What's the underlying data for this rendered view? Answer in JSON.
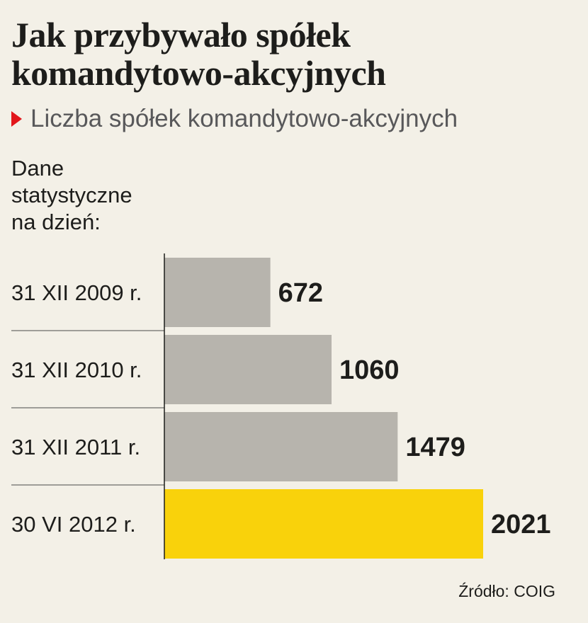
{
  "title": "Jak przybywało spółek komandytowo-akcyjnych",
  "subtitle": "Liczba spółek komandytowo-akcyjnych",
  "note": "Dane statystyczne na dzień:",
  "source": "Źródło: COIG",
  "colors": {
    "bar_default": "#b7b4ad",
    "bar_highlight": "#f9d20b",
    "marker": "#e2161b",
    "background": "#f3f0e7"
  },
  "icons": {
    "subtitle_marker": "triangle-right-icon"
  },
  "chart_data": {
    "type": "bar",
    "orientation": "horizontal",
    "title": "Jak przybywało spółek komandytowo-akcyjnych",
    "subtitle": "Liczba spółek komandytowo-akcyjnych",
    "categories": [
      "31 XII 2009 r.",
      "31 XII 2010 r.",
      "31 XII 2011 r.",
      "30 VI 2012 r."
    ],
    "values": [
      672,
      1060,
      1479,
      2021
    ],
    "highlight_index": 3,
    "data_labels": [
      "672",
      "1060",
      "1479",
      "2021"
    ],
    "xlim": [
      0,
      2021
    ],
    "grid": false,
    "legend": "none"
  }
}
